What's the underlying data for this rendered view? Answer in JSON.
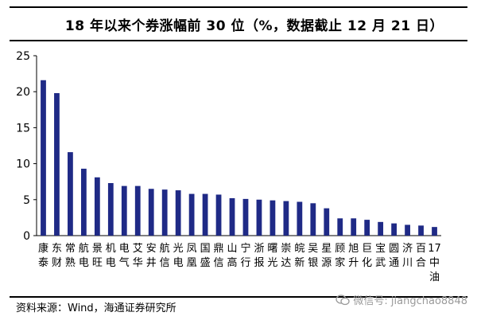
{
  "chart_data": {
    "type": "bar",
    "title": "18 年以来个券涨幅前 30 位（%，数据截止 12 月 21 日）",
    "categories": [
      "康泰",
      "东财",
      "常熟",
      "航电",
      "景旺",
      "机电",
      "电气",
      "艾华",
      "安井",
      "航信",
      "光电",
      "凤凰",
      "国盛",
      "鼎信",
      "山高",
      "宁行",
      "浙报",
      "曙光",
      "崇达",
      "皖新",
      "吴银",
      "星源",
      "顾家",
      "旭升",
      "巨化",
      "宝武",
      "圆通",
      "济川",
      "百合",
      "17中油"
    ],
    "values": [
      21.6,
      19.8,
      11.6,
      9.3,
      8.1,
      7.3,
      6.9,
      6.9,
      6.5,
      6.4,
      6.3,
      5.8,
      5.8,
      5.7,
      5.2,
      5.1,
      5.0,
      4.9,
      4.8,
      4.7,
      4.5,
      3.8,
      2.4,
      2.4,
      2.2,
      1.9,
      1.7,
      1.5,
      1.4,
      1.2
    ],
    "ylim": [
      0,
      25
    ],
    "yticks": [
      0,
      5,
      10,
      15,
      20,
      25
    ],
    "xlabel": "",
    "ylabel": "",
    "grid": false,
    "bar_color": "#1f2a86"
  },
  "source": "资料来源：Wind，海通证券研究所",
  "watermark": "微信号: jiangchao8848",
  "watermark_icon": "wechat-icon"
}
